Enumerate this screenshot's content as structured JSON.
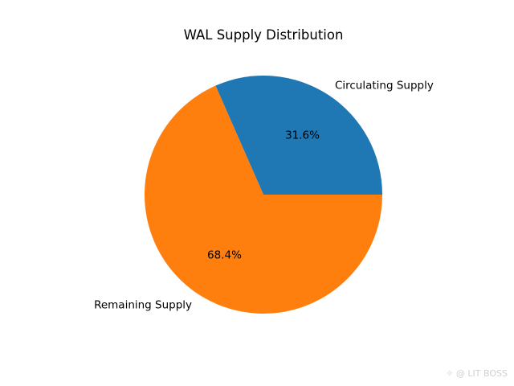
{
  "chart_data": {
    "type": "pie",
    "title": "WAL Supply Distribution",
    "categories": [
      "Circulating Supply",
      "Remaining Supply"
    ],
    "values": [
      31.6,
      68.4
    ],
    "pct_labels": [
      "31.6%",
      "68.4%"
    ],
    "colors": [
      "#1f77b4",
      "#ff7f0e"
    ],
    "start_angle": 0,
    "direction": "counterclockwise"
  },
  "watermark": "✧ @ LIT BOSS"
}
